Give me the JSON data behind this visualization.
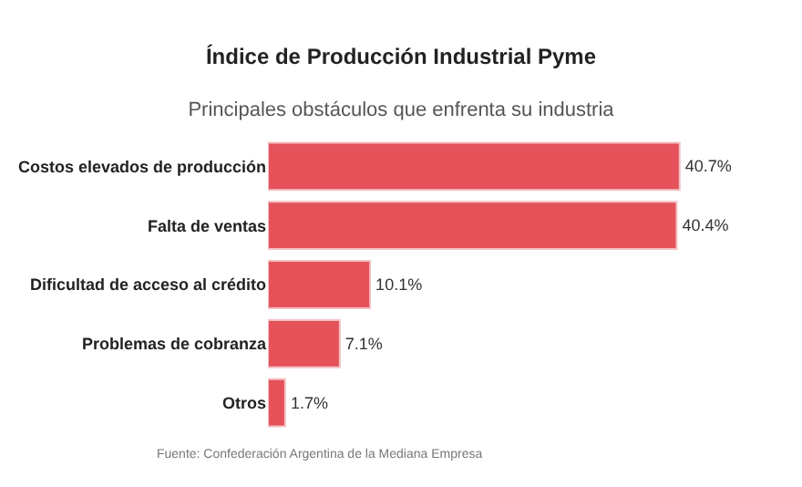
{
  "chart_data": {
    "type": "bar",
    "orientation": "horizontal",
    "title": "Índice de Producción Industrial Pyme",
    "subtitle": "Principales obstáculos que enfrenta su industria",
    "categories": [
      "Costos elevados de producción",
      "Falta de ventas",
      "Dificultad de acceso al crédito",
      "Problemas de cobranza",
      "Otros"
    ],
    "values": [
      40.7,
      40.4,
      10.1,
      7.1,
      1.7
    ],
    "value_labels": [
      "40.7%",
      "40.4%",
      "10.1%",
      "7.1%",
      "1.7%"
    ],
    "color": "#e5525a",
    "annotations": [
      "Fuente: Confederación Argentina de la Mediana Empresa"
    ]
  }
}
